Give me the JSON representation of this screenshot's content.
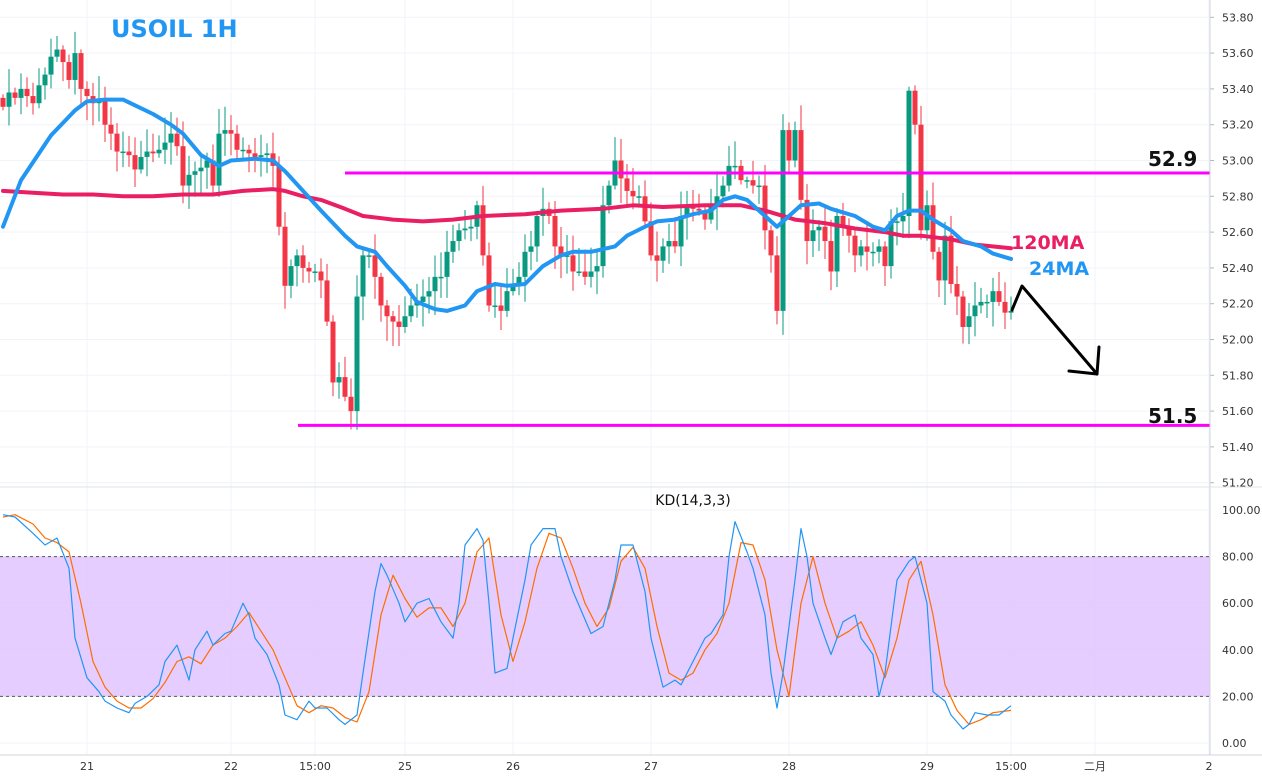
{
  "chart_data": [
    {
      "type": "candlestick",
      "title": "USOIL 1H",
      "ylim": [
        51.2,
        53.9
      ],
      "y_ticks": [
        "53.80",
        "53.60",
        "53.40",
        "53.20",
        "53.00",
        "52.80",
        "52.60",
        "52.40",
        "52.20",
        "52.00",
        "51.80",
        "51.60",
        "51.40",
        "51.20"
      ],
      "x_ticks": [
        {
          "label": "21",
          "index": 14
        },
        {
          "label": "22",
          "index": 38
        },
        {
          "label": "15:00",
          "index": 52
        },
        {
          "label": "25",
          "index": 67
        },
        {
          "label": "26",
          "index": 85
        },
        {
          "label": "27",
          "index": 108
        },
        {
          "label": "28",
          "index": 131
        },
        {
          "label": "29",
          "index": 154
        },
        {
          "label": "15:00",
          "index": 168
        },
        {
          "label": "二月",
          "index": 182
        },
        {
          "label": "2",
          "index": 201
        }
      ],
      "grid": true,
      "colors": {
        "up": "#089981",
        "down": "#f23645",
        "ma24": "#2196f3",
        "ma120": "#e91e63",
        "levels": "#ff00ff",
        "arrow": "#000000"
      },
      "closes": [
        53.3,
        53.38,
        53.35,
        53.4,
        53.36,
        53.32,
        53.42,
        53.48,
        53.58,
        53.62,
        53.55,
        53.45,
        53.6,
        53.4,
        53.36,
        53.32,
        53.34,
        53.2,
        53.15,
        53.05,
        53.05,
        53.03,
        52.95,
        53.02,
        53.05,
        53.04,
        53.06,
        53.1,
        53.15,
        53.08,
        52.86,
        52.92,
        52.94,
        52.96,
        53.0,
        52.86,
        53.15,
        53.17,
        53.15,
        53.06,
        53.06,
        53.04,
        53.02,
        53.03,
        53.04,
        52.97,
        52.63,
        52.3,
        52.41,
        52.47,
        52.4,
        52.38,
        52.38,
        52.33,
        52.1,
        51.76,
        51.79,
        51.68,
        51.6,
        52.24,
        52.47,
        52.47,
        52.35,
        52.19,
        52.13,
        52.1,
        52.07,
        52.13,
        52.19,
        52.21,
        52.24,
        52.27,
        52.35,
        52.35,
        52.49,
        52.55,
        52.61,
        52.62,
        52.63,
        52.75,
        52.47,
        52.19,
        52.19,
        52.16,
        52.27,
        52.3,
        52.35,
        52.49,
        52.52,
        52.69,
        52.73,
        52.69,
        52.52,
        52.47,
        52.47,
        52.38,
        52.38,
        52.35,
        52.38,
        52.41,
        52.75,
        52.86,
        53.0,
        52.9,
        52.83,
        52.8,
        52.8,
        52.66,
        52.47,
        52.44,
        52.52,
        52.55,
        52.52,
        52.69,
        52.75,
        52.73,
        52.72,
        52.67,
        52.75,
        52.8,
        52.86,
        52.97,
        52.97,
        52.89,
        52.89,
        52.86,
        52.86,
        52.61,
        52.47,
        52.16,
        53.17,
        53.0,
        53.17,
        52.78,
        52.55,
        52.61,
        52.63,
        52.55,
        52.38,
        52.69,
        52.63,
        52.58,
        52.47,
        52.52,
        52.49,
        52.49,
        52.52,
        52.41,
        52.66,
        52.66,
        52.69,
        53.39,
        53.2,
        52.61,
        52.75,
        52.49,
        52.33,
        52.58,
        52.31,
        52.24,
        52.07,
        52.13,
        52.19,
        52.21,
        52.21,
        52.27,
        52.21,
        52.15,
        52.16
      ],
      "ma24": [
        [
          0,
          52.63
        ],
        [
          3,
          52.89
        ],
        [
          8,
          53.14
        ],
        [
          12,
          53.28
        ],
        [
          14,
          53.33
        ],
        [
          17,
          53.34
        ],
        [
          20,
          53.34
        ],
        [
          25,
          53.26
        ],
        [
          28,
          53.2
        ],
        [
          30,
          53.15
        ],
        [
          33,
          53.03
        ],
        [
          36,
          52.97
        ],
        [
          38,
          53.0
        ],
        [
          42,
          53.01
        ],
        [
          45,
          53.0
        ],
        [
          47,
          52.94
        ],
        [
          50,
          52.83
        ],
        [
          53,
          52.72
        ],
        [
          57,
          52.58
        ],
        [
          59,
          52.52
        ],
        [
          62,
          52.49
        ],
        [
          64,
          52.41
        ],
        [
          67,
          52.3
        ],
        [
          69,
          52.21
        ],
        [
          72,
          52.17
        ],
        [
          74,
          52.16
        ],
        [
          77,
          52.19
        ],
        [
          79,
          52.27
        ],
        [
          82,
          52.31
        ],
        [
          84,
          52.3
        ],
        [
          87,
          52.31
        ],
        [
          90,
          52.41
        ],
        [
          93,
          52.47
        ],
        [
          95,
          52.49
        ],
        [
          98,
          52.49
        ],
        [
          102,
          52.52
        ],
        [
          104,
          52.58
        ],
        [
          107,
          52.63
        ],
        [
          109,
          52.66
        ],
        [
          112,
          52.67
        ],
        [
          115,
          52.7
        ],
        [
          118,
          52.72
        ],
        [
          120,
          52.78
        ],
        [
          122,
          52.8
        ],
        [
          124,
          52.78
        ],
        [
          127,
          52.69
        ],
        [
          129,
          52.63
        ],
        [
          131,
          52.69
        ],
        [
          133,
          52.75
        ],
        [
          136,
          52.76
        ],
        [
          138,
          52.73
        ],
        [
          142,
          52.69
        ],
        [
          145,
          52.63
        ],
        [
          147,
          52.61
        ],
        [
          149,
          52.69
        ],
        [
          151,
          52.72
        ],
        [
          153,
          52.72
        ],
        [
          155,
          52.67
        ],
        [
          158,
          52.61
        ],
        [
          160,
          52.55
        ],
        [
          163,
          52.52
        ],
        [
          165,
          52.48
        ],
        [
          168,
          52.45
        ]
      ],
      "ma120": [
        [
          0,
          52.83
        ],
        [
          5,
          52.82
        ],
        [
          10,
          52.81
        ],
        [
          15,
          52.81
        ],
        [
          20,
          52.8
        ],
        [
          25,
          52.8
        ],
        [
          30,
          52.81
        ],
        [
          35,
          52.81
        ],
        [
          40,
          52.83
        ],
        [
          45,
          52.84
        ],
        [
          47,
          52.83
        ],
        [
          50,
          52.8
        ],
        [
          53,
          52.78
        ],
        [
          57,
          52.73
        ],
        [
          60,
          52.69
        ],
        [
          65,
          52.67
        ],
        [
          70,
          52.66
        ],
        [
          75,
          52.67
        ],
        [
          80,
          52.69
        ],
        [
          87,
          52.7
        ],
        [
          93,
          52.72
        ],
        [
          100,
          52.73
        ],
        [
          105,
          52.75
        ],
        [
          110,
          52.74
        ],
        [
          117,
          52.75
        ],
        [
          123,
          52.75
        ],
        [
          127,
          52.72
        ],
        [
          132,
          52.67
        ],
        [
          137,
          52.65
        ],
        [
          142,
          52.62
        ],
        [
          147,
          52.6
        ],
        [
          150,
          52.58
        ],
        [
          153,
          52.58
        ],
        [
          158,
          52.56
        ],
        [
          162,
          52.53
        ],
        [
          168,
          52.51
        ]
      ],
      "annotations": {
        "resistance": {
          "value": 52.93,
          "label": "52.9"
        },
        "support": {
          "value": 51.52,
          "label": "51.5"
        },
        "ma120_label": "120MA",
        "ma24_label": "24MA"
      }
    },
    {
      "type": "line",
      "title": "KD(14,3,3)",
      "ylim": [
        0,
        100
      ],
      "y_ticks": [
        "100.00",
        "80.00",
        "60.00",
        "40.00",
        "20.00",
        "0.00"
      ],
      "band": [
        20,
        80
      ],
      "colors": {
        "k": "#2196f3",
        "d": "#ff6d00",
        "band": "#e1c4ff"
      },
      "k": [
        [
          0,
          98
        ],
        [
          2,
          97
        ],
        [
          5,
          90
        ],
        [
          7,
          85
        ],
        [
          9,
          88
        ],
        [
          11,
          75
        ],
        [
          12,
          45
        ],
        [
          14,
          28
        ],
        [
          16,
          22
        ],
        [
          17,
          18
        ],
        [
          19,
          15
        ],
        [
          21,
          13
        ],
        [
          22,
          17
        ],
        [
          24,
          20
        ],
        [
          26,
          25
        ],
        [
          27,
          35
        ],
        [
          29,
          42
        ],
        [
          31,
          27
        ],
        [
          32,
          40
        ],
        [
          34,
          48
        ],
        [
          35,
          42
        ],
        [
          37,
          47
        ],
        [
          38,
          48
        ],
        [
          40,
          60
        ],
        [
          41,
          55
        ],
        [
          42,
          45
        ],
        [
          44,
          38
        ],
        [
          46,
          25
        ],
        [
          47,
          12
        ],
        [
          49,
          10
        ],
        [
          51,
          18
        ],
        [
          52,
          15
        ],
        [
          54,
          15
        ],
        [
          56,
          10
        ],
        [
          57,
          8
        ],
        [
          59,
          12
        ],
        [
          60,
          30
        ],
        [
          62,
          65
        ],
        [
          63,
          77
        ],
        [
          64,
          72
        ],
        [
          66,
          60
        ],
        [
          67,
          52
        ],
        [
          69,
          60
        ],
        [
          71,
          62
        ],
        [
          72,
          57
        ],
        [
          73,
          52
        ],
        [
          75,
          45
        ],
        [
          76,
          60
        ],
        [
          77,
          85
        ],
        [
          79,
          92
        ],
        [
          80,
          87
        ],
        [
          81,
          60
        ],
        [
          82,
          30
        ],
        [
          84,
          32
        ],
        [
          85,
          45
        ],
        [
          87,
          70
        ],
        [
          88,
          85
        ],
        [
          90,
          92
        ],
        [
          92,
          92
        ],
        [
          93,
          80
        ],
        [
          95,
          65
        ],
        [
          97,
          53
        ],
        [
          98,
          47
        ],
        [
          100,
          50
        ],
        [
          102,
          70
        ],
        [
          103,
          85
        ],
        [
          105,
          85
        ],
        [
          107,
          65
        ],
        [
          108,
          45
        ],
        [
          110,
          24
        ],
        [
          112,
          27
        ],
        [
          113,
          25
        ],
        [
          115,
          35
        ],
        [
          117,
          45
        ],
        [
          118,
          47
        ],
        [
          120,
          55
        ],
        [
          121,
          80
        ],
        [
          122,
          95
        ],
        [
          124,
          82
        ],
        [
          125,
          75
        ],
        [
          127,
          55
        ],
        [
          128,
          30
        ],
        [
          129,
          15
        ],
        [
          130,
          30
        ],
        [
          132,
          70
        ],
        [
          133,
          92
        ],
        [
          134,
          80
        ],
        [
          135,
          60
        ],
        [
          137,
          45
        ],
        [
          138,
          38
        ],
        [
          140,
          52
        ],
        [
          142,
          55
        ],
        [
          143,
          45
        ],
        [
          145,
          38
        ],
        [
          146,
          20
        ],
        [
          147,
          30
        ],
        [
          149,
          70
        ],
        [
          151,
          78
        ],
        [
          152,
          80
        ],
        [
          154,
          60
        ],
        [
          155,
          22
        ],
        [
          157,
          18
        ],
        [
          158,
          12
        ],
        [
          160,
          6
        ],
        [
          161,
          8
        ],
        [
          162,
          13
        ],
        [
          164,
          12
        ],
        [
          166,
          12
        ],
        [
          168,
          16
        ]
      ],
      "d": [
        [
          0,
          97
        ],
        [
          2,
          98
        ],
        [
          5,
          94
        ],
        [
          7,
          88
        ],
        [
          9,
          86
        ],
        [
          11,
          82
        ],
        [
          13,
          60
        ],
        [
          15,
          35
        ],
        [
          17,
          24
        ],
        [
          19,
          18
        ],
        [
          21,
          15
        ],
        [
          23,
          15
        ],
        [
          25,
          19
        ],
        [
          27,
          26
        ],
        [
          29,
          35
        ],
        [
          31,
          37
        ],
        [
          33,
          34
        ],
        [
          35,
          42
        ],
        [
          37,
          45
        ],
        [
          39,
          50
        ],
        [
          41,
          56
        ],
        [
          43,
          48
        ],
        [
          45,
          40
        ],
        [
          47,
          28
        ],
        [
          49,
          16
        ],
        [
          51,
          13
        ],
        [
          53,
          16
        ],
        [
          55,
          15
        ],
        [
          57,
          11
        ],
        [
          59,
          9
        ],
        [
          61,
          22
        ],
        [
          63,
          55
        ],
        [
          65,
          72
        ],
        [
          67,
          62
        ],
        [
          69,
          54
        ],
        [
          71,
          58
        ],
        [
          73,
          58
        ],
        [
          75,
          50
        ],
        [
          77,
          60
        ],
        [
          79,
          82
        ],
        [
          81,
          88
        ],
        [
          83,
          55
        ],
        [
          85,
          35
        ],
        [
          87,
          52
        ],
        [
          89,
          75
        ],
        [
          91,
          90
        ],
        [
          93,
          88
        ],
        [
          95,
          75
        ],
        [
          97,
          60
        ],
        [
          99,
          50
        ],
        [
          101,
          58
        ],
        [
          103,
          78
        ],
        [
          105,
          84
        ],
        [
          107,
          75
        ],
        [
          109,
          50
        ],
        [
          111,
          30
        ],
        [
          113,
          27
        ],
        [
          115,
          30
        ],
        [
          117,
          40
        ],
        [
          119,
          47
        ],
        [
          121,
          60
        ],
        [
          123,
          86
        ],
        [
          125,
          85
        ],
        [
          127,
          70
        ],
        [
          129,
          40
        ],
        [
          131,
          20
        ],
        [
          133,
          60
        ],
        [
          135,
          80
        ],
        [
          137,
          60
        ],
        [
          139,
          45
        ],
        [
          141,
          48
        ],
        [
          143,
          52
        ],
        [
          145,
          42
        ],
        [
          147,
          28
        ],
        [
          149,
          45
        ],
        [
          151,
          70
        ],
        [
          153,
          78
        ],
        [
          155,
          55
        ],
        [
          157,
          25
        ],
        [
          159,
          14
        ],
        [
          161,
          8
        ],
        [
          163,
          10
        ],
        [
          165,
          13
        ],
        [
          168,
          14
        ]
      ]
    }
  ]
}
